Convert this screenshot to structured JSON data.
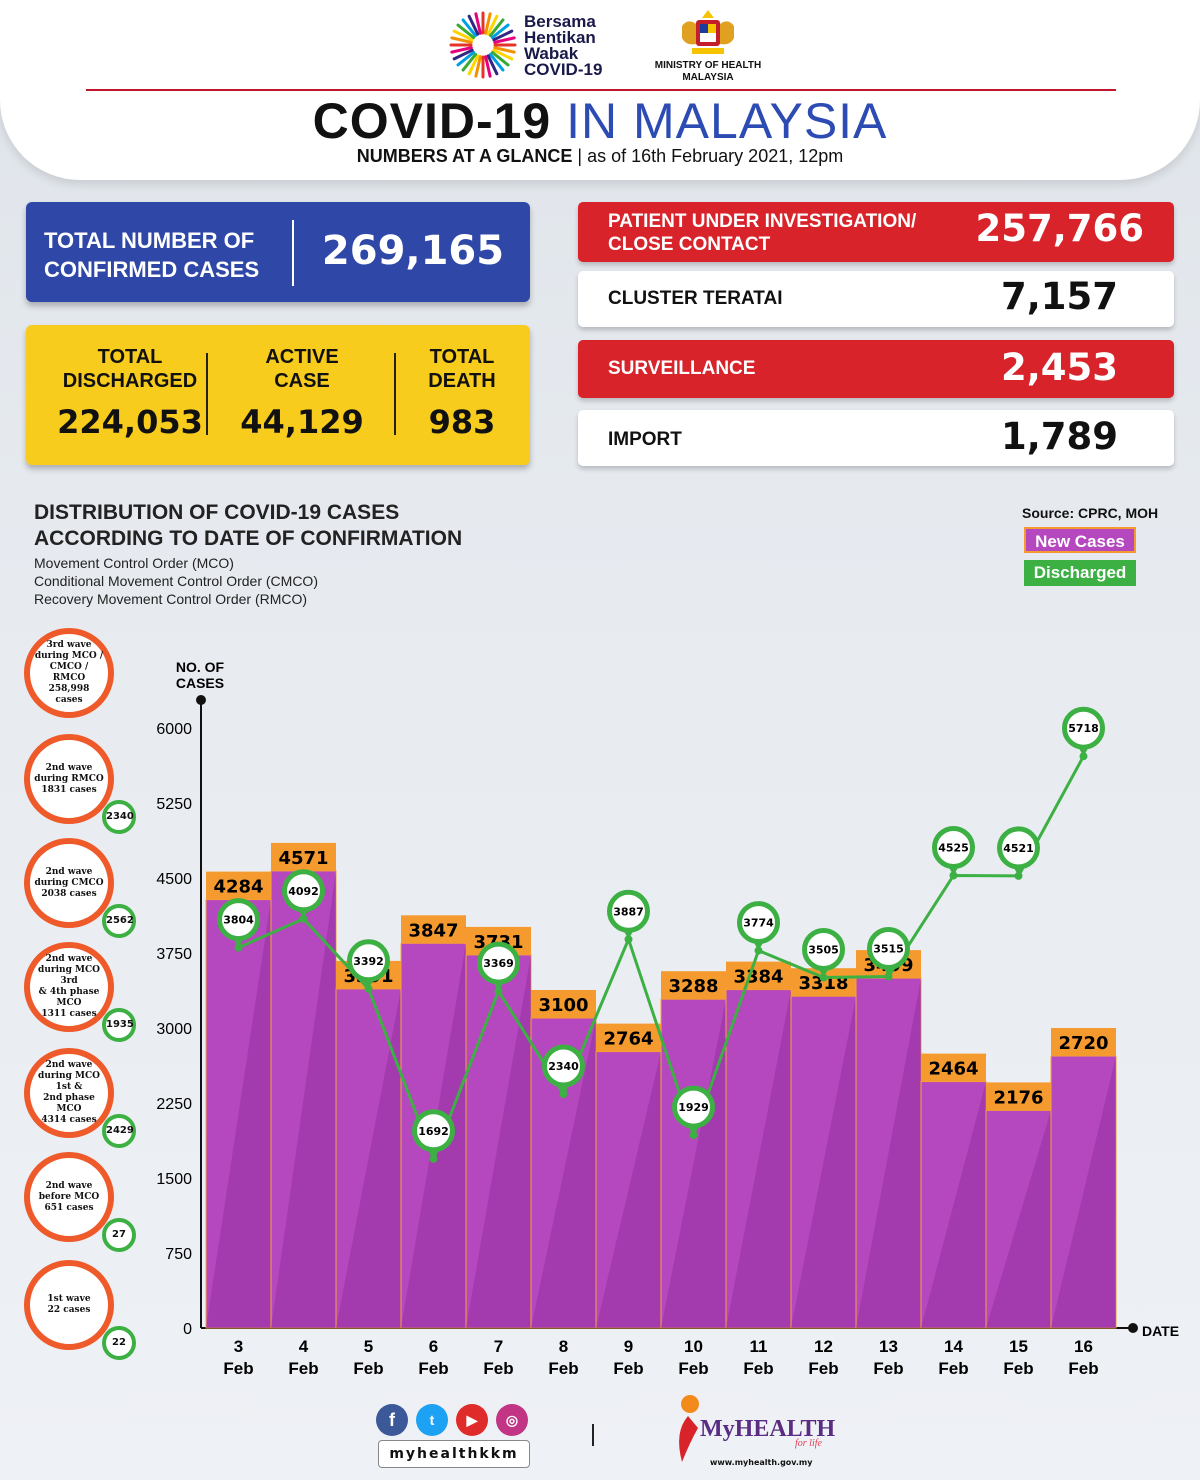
{
  "header": {
    "logo_text": [
      "Bersama",
      "Hentikan",
      "Wabak",
      "COVID-19"
    ],
    "ministry": [
      "MINISTRY OF HEALTH",
      "MALAYSIA"
    ],
    "title_main": "COVID-19",
    "title_accent": "IN MALAYSIA",
    "subtitle_bold": "NUMBERS AT A GLANCE",
    "subtitle_rest": "as of 16th February 2021, 12pm"
  },
  "summary": {
    "confirmed_label_1": "TOTAL NUMBER OF",
    "confirmed_label_2": "CONFIRMED CASES",
    "confirmed_value": "269,165",
    "discharged_label_1": "TOTAL",
    "discharged_label_2": "DISCHARGED",
    "discharged_value": "224,053",
    "active_label_1": "ACTIVE",
    "active_label_2": "CASE",
    "active_value": "44,129",
    "death_label_1": "TOTAL",
    "death_label_2": "DEATH",
    "death_value": "983"
  },
  "right_stats": [
    {
      "label_1": "PATIENT UNDER INVESTIGATION/",
      "label_2": "CLOSE CONTACT",
      "value": "257,766",
      "style": "red"
    },
    {
      "label_1": "CLUSTER TERATAI",
      "label_2": "",
      "value": "7,157",
      "style": "white"
    },
    {
      "label_1": "SURVEILLANCE",
      "label_2": "",
      "value": "2,453",
      "style": "red"
    },
    {
      "label_1": "IMPORT",
      "label_2": "",
      "value": "1,789",
      "style": "white"
    }
  ],
  "distribution": {
    "title_1": "DISTRIBUTION OF COVID-19 CASES",
    "title_2": "ACCORDING TO DATE OF CONFIRMATION",
    "mco_lines": [
      "Movement Control Order (MCO)",
      "Conditional Movement Control Order (CMCO)",
      "Recovery Movement Control Order (RMCO)"
    ],
    "source": "Source: CPRC, MOH",
    "legend_new": "New Cases",
    "legend_discharged": "Discharged"
  },
  "waves": [
    {
      "lines": [
        "3rd wave",
        "during MCO /",
        "CMCO / RMCO",
        "258,998",
        "cases"
      ],
      "discharged": ""
    },
    {
      "lines": [
        "2nd wave",
        "during RMCO",
        "1831 cases"
      ],
      "discharged": "2340"
    },
    {
      "lines": [
        "2nd wave",
        "during CMCO",
        "2038 cases"
      ],
      "discharged": "2562"
    },
    {
      "lines": [
        "2nd wave",
        "during MCO 3rd",
        "& 4th phase MCO",
        "1311 cases"
      ],
      "discharged": "1935"
    },
    {
      "lines": [
        "2nd wave",
        "during MCO 1st &",
        "2nd phase MCO",
        "4314 cases"
      ],
      "discharged": "2429"
    },
    {
      "lines": [
        "2nd wave",
        "before MCO",
        "651 cases"
      ],
      "discharged": "27"
    },
    {
      "lines": [
        "1st wave",
        "22 cases"
      ],
      "discharged": "22"
    }
  ],
  "chart_data": {
    "type": "bar",
    "ylabel": "NO. OF CASES",
    "xlabel": "DATE",
    "ylim": [
      0,
      6000
    ],
    "yticks": [
      0,
      750,
      1500,
      2250,
      3000,
      3750,
      4500,
      5250,
      6000
    ],
    "categories": [
      "3",
      "4",
      "5",
      "6",
      "7",
      "8",
      "9",
      "10",
      "11",
      "12",
      "13",
      "14",
      "15",
      "16"
    ],
    "category_sublabel": "Feb",
    "series": [
      {
        "name": "New Cases",
        "type": "bar",
        "color": "#b548be",
        "values": [
          4284,
          4571,
          3391,
          3847,
          3731,
          3100,
          2764,
          3288,
          3384,
          3318,
          3499,
          2464,
          2176,
          2720
        ]
      },
      {
        "name": "Discharged",
        "type": "line",
        "color": "#3cb043",
        "values": [
          3804,
          4092,
          3392,
          1692,
          3369,
          2340,
          3887,
          1929,
          3774,
          3505,
          3515,
          4525,
          4521,
          5718
        ]
      }
    ]
  },
  "footer": {
    "handle": "myhealthkkm",
    "brand": "MyHEALTH",
    "brand_sub": "for life",
    "url": "www.myhealth.gov.my"
  },
  "colors": {
    "blue": "#2f48a8",
    "yellow": "#f8cc1d",
    "red": "#d8232a",
    "bar": "#b548be",
    "bar_label": "#f59a2f",
    "discharged": "#3cb043",
    "wave_ring": "#ef5a2a"
  }
}
